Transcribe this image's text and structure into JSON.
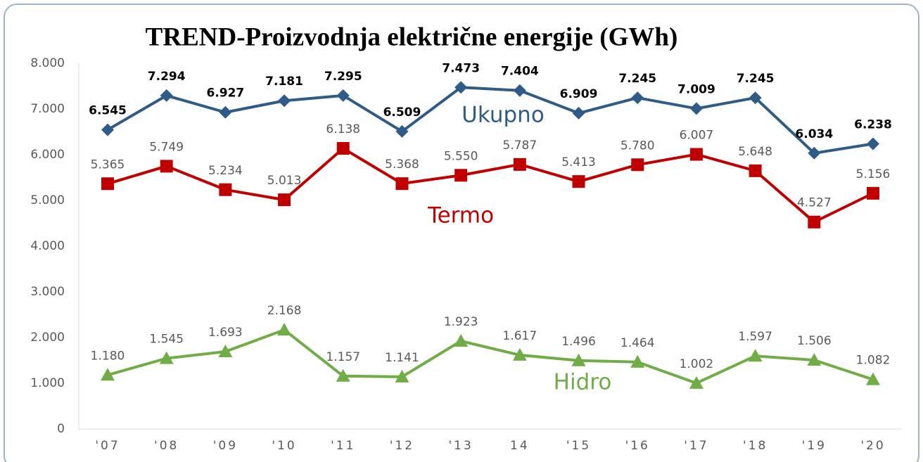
{
  "chart_data": {
    "type": "line",
    "title": "TREND-Proizvodnja električne energije (GWh)",
    "categories": [
      "'07",
      "'08",
      "'09",
      "'10",
      "'11",
      "'12",
      "'13",
      "14",
      "'15",
      "'16",
      "'17",
      "'18",
      "'19",
      "'20"
    ],
    "ylim": [
      0,
      8000
    ],
    "yticks": [
      {
        "value": 0,
        "label": "0"
      },
      {
        "value": 1000,
        "label": "1.000"
      },
      {
        "value": 2000,
        "label": "2.000"
      },
      {
        "value": 3000,
        "label": "3.000"
      },
      {
        "value": 4000,
        "label": "4.000"
      },
      {
        "value": 5000,
        "label": "5.000"
      },
      {
        "value": 6000,
        "label": "6.000"
      },
      {
        "value": 7000,
        "label": "7.000"
      },
      {
        "value": 8000,
        "label": "8.000"
      }
    ],
    "grid": false,
    "series": [
      {
        "name": "Ukupno",
        "color": "#2f5b88",
        "marker": "diamond",
        "values": [
          6545,
          7294,
          6927,
          7181,
          7295,
          6509,
          7473,
          7404,
          6909,
          7245,
          7009,
          7245,
          6034,
          6238
        ],
        "value_labels": [
          "6.545",
          "7.294",
          "6.927",
          "7.181",
          "7.295",
          "6.509",
          "7.473",
          "7.404",
          "6.909",
          "7.245",
          "7.009",
          "7.245",
          "6.034",
          "6.238"
        ]
      },
      {
        "name": "Termo",
        "color": "#c00000",
        "marker": "square",
        "values": [
          5365,
          5749,
          5234,
          5013,
          6138,
          5368,
          5550,
          5787,
          5413,
          5780,
          6007,
          5648,
          4527,
          5156
        ],
        "value_labels": [
          "5.365",
          "5.749",
          "5.234",
          "5.013",
          "6.138",
          "5.368",
          "5.550",
          "5.787",
          "5.413",
          "5.780",
          "6.007",
          "5.648",
          "4.527",
          "5.156"
        ]
      },
      {
        "name": "Hidro",
        "color": "#70ad47",
        "marker": "triangle",
        "values": [
          1180,
          1545,
          1693,
          2168,
          1157,
          1141,
          1923,
          1617,
          1496,
          1464,
          1002,
          1597,
          1506,
          1082
        ],
        "value_labels": [
          "1.180",
          "1.545",
          "1.693",
          "2.168",
          "1.157",
          "1.141",
          "1.923",
          "1.617",
          "1.496",
          "1.464",
          "1.002",
          "1.597",
          "1.506",
          "1.082"
        ]
      }
    ]
  }
}
